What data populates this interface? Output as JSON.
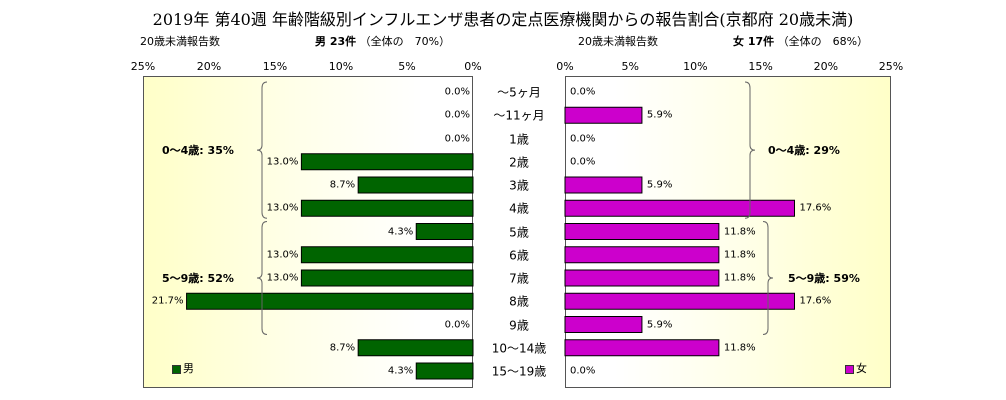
{
  "title": "2019年 第40週 年齢階級別インフルエンザ患者の定点医療機関からの報告割合(京都府 20歳未満)",
  "header": {
    "left_label": "20歳未満報告数",
    "male_count": "男 23件",
    "male_total": "（全体の　70%）",
    "right_label": "20歳未満報告数",
    "female_count": "女 17件",
    "female_total": "（全体の　68%）"
  },
  "legend": {
    "male": "男",
    "female": "女"
  },
  "colors": {
    "male": "#006400",
    "female": "#cc00cc",
    "brace": "#666666"
  },
  "braces": {
    "male": [
      {
        "label": "0～4歳: 35%",
        "from": 0,
        "to": 5
      },
      {
        "label": "5～9歳: 52%",
        "from": 6,
        "to": 10
      }
    ],
    "female": [
      {
        "label": "0～4歳: 29%",
        "from": 0,
        "to": 5
      },
      {
        "label": "5～9歳: 59%",
        "from": 6,
        "to": 10
      }
    ]
  },
  "chart_data": {
    "type": "bar",
    "orientation": "horizontal-butterfly",
    "title": "2019年 第40週 年齢階級別インフルエンザ患者の定点医療機関からの報告割合(京都府 20歳未満)",
    "categories": [
      "～5ヶ月",
      "～11ヶ月",
      "1歳",
      "2歳",
      "3歳",
      "4歳",
      "5歳",
      "6歳",
      "7歳",
      "8歳",
      "9歳",
      "10～14歳",
      "15～19歳"
    ],
    "xlim": [
      0,
      25
    ],
    "ticks": [
      25,
      20,
      15,
      10,
      5,
      0
    ],
    "tick_labels": [
      "25%",
      "20%",
      "15%",
      "10%",
      "5%",
      "0%"
    ],
    "series": [
      {
        "name": "男",
        "values": [
          0.0,
          0.0,
          0.0,
          13.0,
          8.7,
          13.0,
          4.3,
          13.0,
          13.0,
          21.7,
          0.0,
          8.7,
          4.3
        ],
        "labels": [
          "0.0%",
          "0.0%",
          "0.0%",
          "13.0%",
          "8.7%",
          "13.0%",
          "4.3%",
          "13.0%",
          "13.0%",
          "21.7%",
          "0.0%",
          "8.7%",
          "4.3%"
        ]
      },
      {
        "name": "女",
        "values": [
          0.0,
          5.9,
          0.0,
          0.0,
          5.9,
          17.6,
          11.8,
          11.8,
          11.8,
          17.6,
          5.9,
          11.8,
          0.0
        ],
        "labels": [
          "0.0%",
          "5.9%",
          "0.0%",
          "0.0%",
          "5.9%",
          "17.6%",
          "11.8%",
          "11.8%",
          "11.8%",
          "17.6%",
          "5.9%",
          "11.8%",
          "0.0%"
        ]
      }
    ]
  }
}
